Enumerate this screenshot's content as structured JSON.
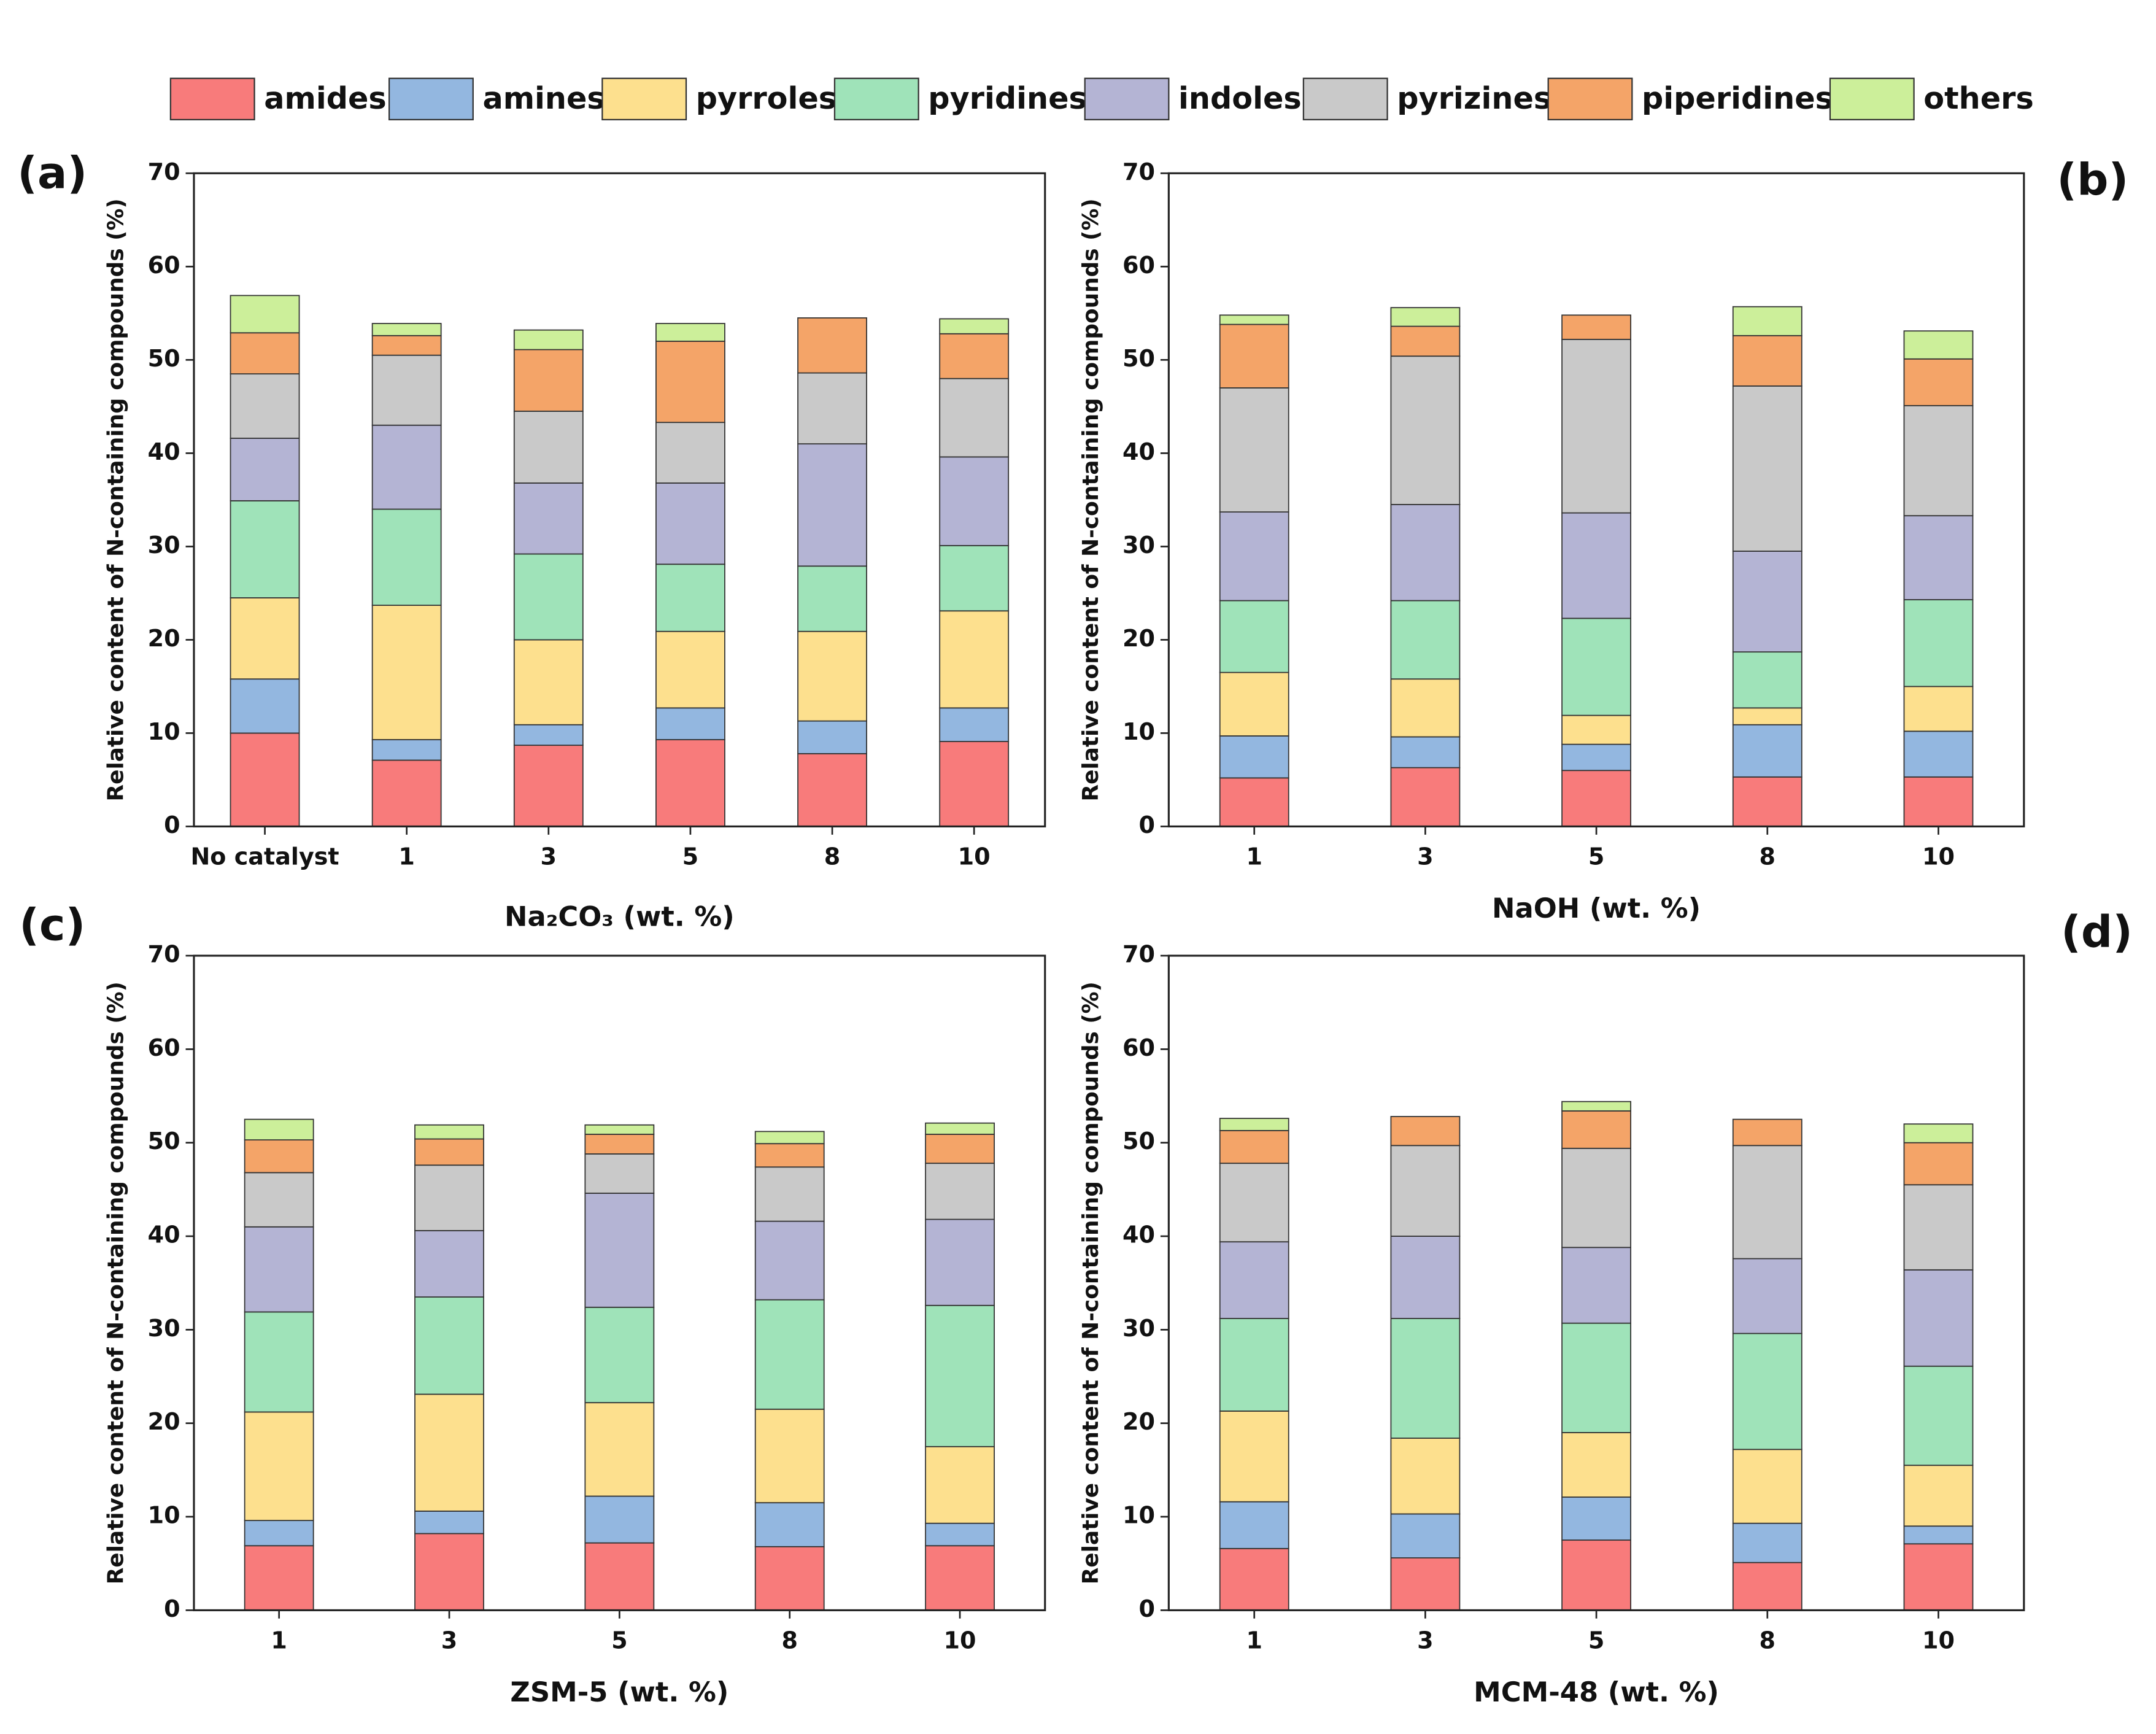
{
  "chart_data": [
    {
      "type": "bar",
      "stacked": true,
      "label": "(a)",
      "x_label": "Na₂CO₃ (wt. %)",
      "y_label": "Relative content of N-containing compounds (%)",
      "categories": [
        "No catalyst",
        "1",
        "3",
        "5",
        "8",
        "10"
      ],
      "ylim": [
        0,
        70
      ],
      "yticks": [
        0,
        10,
        20,
        30,
        40,
        50,
        60,
        70
      ],
      "series": [
        {
          "name": "amides",
          "color": "#f87b7b",
          "values": [
            10.0,
            7.1,
            8.7,
            9.3,
            7.8,
            9.1
          ]
        },
        {
          "name": "amines",
          "color": "#93b7e0",
          "values": [
            5.8,
            2.2,
            2.2,
            3.4,
            3.5,
            3.6
          ]
        },
        {
          "name": "pyrroles",
          "color": "#fde08e",
          "values": [
            8.7,
            14.4,
            9.1,
            8.2,
            9.6,
            10.4
          ]
        },
        {
          "name": "pyridines",
          "color": "#9fe3b9",
          "values": [
            10.4,
            10.3,
            9.2,
            7.2,
            7.0,
            7.0
          ]
        },
        {
          "name": "indoles",
          "color": "#b4b4d4",
          "values": [
            6.7,
            9.0,
            7.6,
            8.7,
            13.1,
            9.5
          ]
        },
        {
          "name": "pyrizines",
          "color": "#c9c9c9",
          "values": [
            6.9,
            7.5,
            7.7,
            6.5,
            7.6,
            8.4
          ]
        },
        {
          "name": "piperidines",
          "color": "#f4a468",
          "values": [
            4.4,
            2.1,
            6.6,
            8.7,
            5.9,
            4.8
          ]
        },
        {
          "name": "others",
          "color": "#ccef9a",
          "values": [
            4.0,
            1.3,
            2.1,
            1.9,
            0,
            1.6
          ]
        }
      ]
    },
    {
      "type": "bar",
      "stacked": true,
      "label": "(b)",
      "x_label": "NaOH (wt. %)",
      "y_label": "Relative content of N-containing compounds (%)",
      "categories": [
        "1",
        "3",
        "5",
        "8",
        "10"
      ],
      "ylim": [
        0,
        70
      ],
      "yticks": [
        0,
        10,
        20,
        30,
        40,
        50,
        60,
        70
      ],
      "series": [
        {
          "name": "amides",
          "color": "#f87b7b",
          "values": [
            5.2,
            6.3,
            6.0,
            5.3,
            5.3
          ]
        },
        {
          "name": "amines",
          "color": "#93b7e0",
          "values": [
            4.5,
            3.3,
            2.8,
            5.6,
            4.9
          ]
        },
        {
          "name": "pyrroles",
          "color": "#fde08e",
          "values": [
            6.8,
            6.2,
            3.1,
            1.8,
            4.8
          ]
        },
        {
          "name": "pyridines",
          "color": "#9fe3b9",
          "values": [
            7.7,
            8.4,
            10.4,
            6.0,
            9.3
          ]
        },
        {
          "name": "indoles",
          "color": "#b4b4d4",
          "values": [
            9.5,
            10.3,
            11.3,
            10.8,
            9.0
          ]
        },
        {
          "name": "pyrizines",
          "color": "#c9c9c9",
          "values": [
            13.3,
            15.9,
            18.6,
            17.7,
            11.8
          ]
        },
        {
          "name": "piperidines",
          "color": "#f4a468",
          "values": [
            6.8,
            3.2,
            2.6,
            5.4,
            5.0
          ]
        },
        {
          "name": "others",
          "color": "#ccef9a",
          "values": [
            1.0,
            2.0,
            0,
            3.1,
            3.0
          ]
        }
      ]
    },
    {
      "type": "bar",
      "stacked": true,
      "label": "(c)",
      "x_label": "ZSM-5 (wt. %)",
      "y_label": "Relative content of N-containing compounds (%)",
      "categories": [
        "1",
        "3",
        "5",
        "8",
        "10"
      ],
      "ylim": [
        0,
        70
      ],
      "yticks": [
        0,
        10,
        20,
        30,
        40,
        50,
        60,
        70
      ],
      "series": [
        {
          "name": "amides",
          "color": "#f87b7b",
          "values": [
            6.9,
            8.2,
            7.2,
            6.8,
            6.9
          ]
        },
        {
          "name": "amines",
          "color": "#93b7e0",
          "values": [
            2.7,
            2.4,
            5.0,
            4.7,
            2.4
          ]
        },
        {
          "name": "pyrroles",
          "color": "#fde08e",
          "values": [
            11.6,
            12.5,
            10.0,
            10.0,
            8.2
          ]
        },
        {
          "name": "pyridines",
          "color": "#9fe3b9",
          "values": [
            10.7,
            10.4,
            10.2,
            11.7,
            15.1
          ]
        },
        {
          "name": "indoles",
          "color": "#b4b4d4",
          "values": [
            9.1,
            7.1,
            12.2,
            8.4,
            9.2
          ]
        },
        {
          "name": "pyrizines",
          "color": "#c9c9c9",
          "values": [
            5.8,
            7.0,
            4.2,
            5.8,
            6.0
          ]
        },
        {
          "name": "piperidines",
          "color": "#f4a468",
          "values": [
            3.5,
            2.8,
            2.1,
            2.5,
            3.1
          ]
        },
        {
          "name": "others",
          "color": "#ccef9a",
          "values": [
            2.2,
            1.5,
            1.0,
            1.3,
            1.2
          ]
        }
      ]
    },
    {
      "type": "bar",
      "stacked": true,
      "label": "(d)",
      "x_label": "MCM-48 (wt. %)",
      "y_label": "Relative content of N-containing compounds (%)",
      "categories": [
        "1",
        "3",
        "5",
        "8",
        "10"
      ],
      "ylim": [
        0,
        70
      ],
      "yticks": [
        0,
        10,
        20,
        30,
        40,
        50,
        60,
        70
      ],
      "series": [
        {
          "name": "amides",
          "color": "#f87b7b",
          "values": [
            6.6,
            5.6,
            7.5,
            5.1,
            7.1
          ]
        },
        {
          "name": "amines",
          "color": "#93b7e0",
          "values": [
            5.0,
            4.7,
            4.6,
            4.2,
            1.9
          ]
        },
        {
          "name": "pyrroles",
          "color": "#fde08e",
          "values": [
            9.7,
            8.1,
            6.9,
            7.9,
            6.5
          ]
        },
        {
          "name": "pyridines",
          "color": "#9fe3b9",
          "values": [
            9.9,
            12.8,
            11.7,
            12.4,
            10.6
          ]
        },
        {
          "name": "indoles",
          "color": "#b4b4d4",
          "values": [
            8.2,
            8.8,
            8.1,
            8.0,
            10.3
          ]
        },
        {
          "name": "pyrizines",
          "color": "#c9c9c9",
          "values": [
            8.4,
            9.7,
            10.6,
            12.1,
            9.1
          ]
        },
        {
          "name": "piperidines",
          "color": "#f4a468",
          "values": [
            3.5,
            3.1,
            4.0,
            2.8,
            4.5
          ]
        },
        {
          "name": "others",
          "color": "#ccef9a",
          "values": [
            1.3,
            0,
            1.0,
            0,
            2.0
          ]
        }
      ]
    }
  ]
}
